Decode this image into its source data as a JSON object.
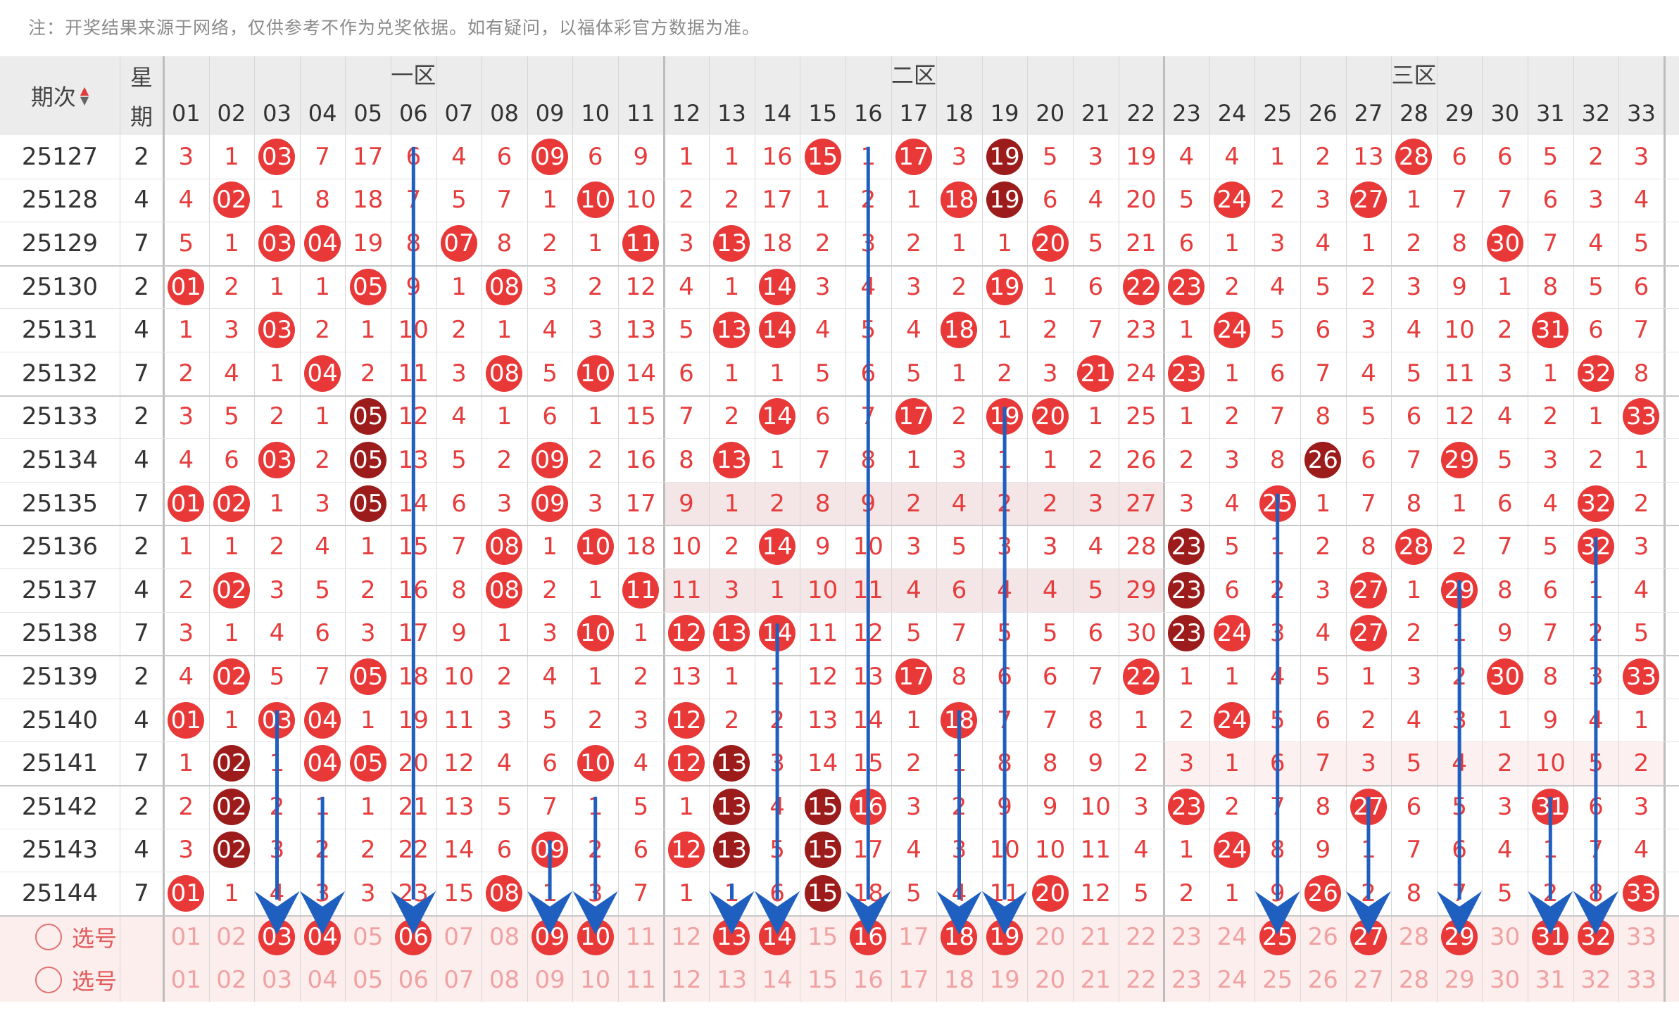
{
  "notice": "注：开奖结果来源于网络，仅供参考不作为兑奖依据。如有疑问，以福体彩官方数据为准。",
  "header": {
    "period_label": "期次",
    "sort_icon": "sort-up-down-icon",
    "weekday_label_top": "星",
    "weekday_label_bottom": "期",
    "zones": [
      "一区",
      "二区",
      "三区"
    ],
    "numbers": [
      "01",
      "02",
      "03",
      "04",
      "05",
      "06",
      "07",
      "08",
      "09",
      "10",
      "11",
      "12",
      "13",
      "14",
      "15",
      "16",
      "17",
      "18",
      "19",
      "20",
      "21",
      "22",
      "23",
      "24",
      "25",
      "26",
      "27",
      "28",
      "29",
      "30",
      "31",
      "32",
      "33"
    ]
  },
  "rows": [
    {
      "period": "25127",
      "weekday": "2",
      "cells": [
        "3",
        "1",
        "03",
        "7",
        "17",
        "6",
        "4",
        "6",
        "09",
        "6",
        "9",
        "1",
        "1",
        "16",
        "15",
        "1",
        "17",
        "3",
        "19",
        "5",
        "3",
        "19",
        "4",
        "4",
        "1",
        "2",
        "13",
        "28",
        "6",
        "6",
        "5",
        "2",
        "3"
      ],
      "dark": [
        19
      ]
    },
    {
      "period": "25128",
      "weekday": "4",
      "cells": [
        "4",
        "02",
        "1",
        "8",
        "18",
        "7",
        "5",
        "7",
        "1",
        "10",
        "10",
        "2",
        "2",
        "17",
        "1",
        "2",
        "1",
        "18",
        "19",
        "6",
        "4",
        "20",
        "5",
        "24",
        "2",
        "3",
        "27",
        "1",
        "7",
        "7",
        "6",
        "3",
        "4"
      ],
      "dark": [
        19
      ]
    },
    {
      "period": "25129",
      "weekday": "7",
      "cells": [
        "5",
        "1",
        "03",
        "04",
        "19",
        "8",
        "07",
        "8",
        "2",
        "1",
        "11",
        "3",
        "13",
        "18",
        "2",
        "3",
        "2",
        "1",
        "1",
        "20",
        "5",
        "21",
        "6",
        "1",
        "3",
        "4",
        "1",
        "2",
        "8",
        "30",
        "7",
        "4",
        "5"
      ],
      "dark": []
    },
    {
      "period": "25130",
      "weekday": "2",
      "cells": [
        "01",
        "2",
        "1",
        "1",
        "05",
        "9",
        "1",
        "08",
        "3",
        "2",
        "12",
        "4",
        "1",
        "14",
        "3",
        "4",
        "3",
        "2",
        "19",
        "1",
        "6",
        "22",
        "23",
        "2",
        "4",
        "5",
        "2",
        "3",
        "9",
        "1",
        "8",
        "5",
        "6"
      ],
      "dark": []
    },
    {
      "period": "25131",
      "weekday": "4",
      "cells": [
        "1",
        "3",
        "03",
        "2",
        "1",
        "10",
        "2",
        "1",
        "4",
        "3",
        "13",
        "5",
        "13",
        "14",
        "4",
        "5",
        "4",
        "18",
        "1",
        "2",
        "7",
        "23",
        "1",
        "24",
        "5",
        "6",
        "3",
        "4",
        "10",
        "2",
        "31",
        "6",
        "7"
      ],
      "dark": []
    },
    {
      "period": "25132",
      "weekday": "7",
      "cells": [
        "2",
        "4",
        "1",
        "04",
        "2",
        "11",
        "3",
        "08",
        "5",
        "10",
        "14",
        "6",
        "1",
        "1",
        "5",
        "6",
        "5",
        "1",
        "2",
        "3",
        "21",
        "24",
        "23",
        "1",
        "6",
        "7",
        "4",
        "5",
        "11",
        "3",
        "1",
        "32",
        "8"
      ],
      "dark": []
    },
    {
      "period": "25133",
      "weekday": "2",
      "cells": [
        "3",
        "5",
        "2",
        "1",
        "05",
        "12",
        "4",
        "1",
        "6",
        "1",
        "15",
        "7",
        "2",
        "14",
        "6",
        "7",
        "17",
        "2",
        "19",
        "20",
        "1",
        "25",
        "1",
        "2",
        "7",
        "8",
        "5",
        "6",
        "12",
        "4",
        "2",
        "1",
        "33"
      ],
      "dark": [
        5
      ]
    },
    {
      "period": "25134",
      "weekday": "4",
      "cells": [
        "4",
        "6",
        "03",
        "2",
        "05",
        "13",
        "5",
        "2",
        "09",
        "2",
        "16",
        "8",
        "13",
        "1",
        "7",
        "8",
        "1",
        "3",
        "1",
        "1",
        "2",
        "26",
        "2",
        "3",
        "8",
        "26",
        "6",
        "7",
        "29",
        "5",
        "3",
        "2",
        "1"
      ],
      "dark": [
        5,
        26
      ]
    },
    {
      "period": "25135",
      "weekday": "7",
      "cells": [
        "01",
        "02",
        "1",
        "3",
        "05",
        "14",
        "6",
        "3",
        "09",
        "3",
        "17",
        "9",
        "1",
        "2",
        "8",
        "9",
        "2",
        "4",
        "2",
        "2",
        "3",
        "27",
        "3",
        "4",
        "25",
        "1",
        "7",
        "8",
        "1",
        "6",
        "4",
        "32",
        "2"
      ],
      "dark": [
        5
      ]
    },
    {
      "period": "25136",
      "weekday": "2",
      "cells": [
        "1",
        "1",
        "2",
        "4",
        "1",
        "15",
        "7",
        "08",
        "1",
        "10",
        "18",
        "10",
        "2",
        "14",
        "9",
        "10",
        "3",
        "5",
        "3",
        "3",
        "4",
        "28",
        "23",
        "5",
        "1",
        "2",
        "8",
        "28",
        "2",
        "7",
        "5",
        "32",
        "3"
      ],
      "dark": [
        23
      ]
    },
    {
      "period": "25137",
      "weekday": "4",
      "cells": [
        "2",
        "02",
        "3",
        "5",
        "2",
        "16",
        "8",
        "08",
        "2",
        "1",
        "11",
        "11",
        "3",
        "1",
        "10",
        "11",
        "4",
        "6",
        "4",
        "4",
        "5",
        "29",
        "23",
        "6",
        "2",
        "3",
        "27",
        "1",
        "29",
        "8",
        "6",
        "1",
        "4"
      ],
      "dark": [
        23
      ]
    },
    {
      "period": "25138",
      "weekday": "7",
      "cells": [
        "3",
        "1",
        "4",
        "6",
        "3",
        "17",
        "9",
        "1",
        "3",
        "10",
        "1",
        "12",
        "13",
        "14",
        "11",
        "12",
        "5",
        "7",
        "5",
        "5",
        "6",
        "30",
        "23",
        "24",
        "3",
        "4",
        "27",
        "2",
        "1",
        "9",
        "7",
        "2",
        "5"
      ],
      "dark": [
        23
      ]
    },
    {
      "period": "25139",
      "weekday": "2",
      "cells": [
        "4",
        "02",
        "5",
        "7",
        "05",
        "18",
        "10",
        "2",
        "4",
        "1",
        "2",
        "13",
        "1",
        "1",
        "12",
        "13",
        "17",
        "8",
        "6",
        "6",
        "7",
        "22",
        "1",
        "1",
        "4",
        "5",
        "1",
        "3",
        "2",
        "30",
        "8",
        "3",
        "33"
      ],
      "dark": []
    },
    {
      "period": "25140",
      "weekday": "4",
      "cells": [
        "01",
        "1",
        "03",
        "04",
        "1",
        "19",
        "11",
        "3",
        "5",
        "2",
        "3",
        "12",
        "2",
        "2",
        "13",
        "14",
        "1",
        "18",
        "7",
        "7",
        "8",
        "1",
        "2",
        "24",
        "5",
        "6",
        "2",
        "4",
        "3",
        "1",
        "9",
        "4",
        "1"
      ],
      "dark": []
    },
    {
      "period": "25141",
      "weekday": "7",
      "cells": [
        "1",
        "02",
        "1",
        "04",
        "05",
        "20",
        "12",
        "4",
        "6",
        "10",
        "4",
        "12",
        "13",
        "3",
        "14",
        "15",
        "2",
        "1",
        "8",
        "8",
        "9",
        "2",
        "3",
        "1",
        "6",
        "7",
        "3",
        "5",
        "4",
        "2",
        "10",
        "5",
        "2"
      ],
      "dark": [
        2,
        13
      ]
    },
    {
      "period": "25142",
      "weekday": "2",
      "cells": [
        "2",
        "02",
        "2",
        "1",
        "1",
        "21",
        "13",
        "5",
        "7",
        "1",
        "5",
        "1",
        "13",
        "4",
        "15",
        "16",
        "3",
        "2",
        "9",
        "9",
        "10",
        "3",
        "23",
        "2",
        "7",
        "8",
        "27",
        "6",
        "5",
        "3",
        "31",
        "6",
        "3"
      ],
      "dark": [
        2,
        13,
        15
      ]
    },
    {
      "period": "25143",
      "weekday": "4",
      "cells": [
        "3",
        "02",
        "3",
        "2",
        "2",
        "22",
        "14",
        "6",
        "09",
        "2",
        "6",
        "12",
        "13",
        "5",
        "15",
        "17",
        "4",
        "3",
        "10",
        "10",
        "11",
        "4",
        "1",
        "24",
        "8",
        "9",
        "1",
        "7",
        "6",
        "4",
        "1",
        "7",
        "4"
      ],
      "dark": [
        2,
        13,
        15
      ]
    },
    {
      "period": "25144",
      "weekday": "7",
      "cells": [
        "01",
        "1",
        "4",
        "3",
        "3",
        "23",
        "15",
        "08",
        "1",
        "3",
        "7",
        "1",
        "1",
        "6",
        "15",
        "18",
        "5",
        "4",
        "11",
        "20",
        "12",
        "5",
        "2",
        "1",
        "9",
        "26",
        "2",
        "8",
        "7",
        "5",
        "2",
        "8",
        "33"
      ],
      "dark": [
        15
      ]
    }
  ],
  "select_rows": [
    {
      "label": "选号",
      "selected": [
        "03",
        "04",
        "06",
        "09",
        "10",
        "13",
        "14",
        "16",
        "18",
        "19",
        "25",
        "27",
        "29",
        "31",
        "32"
      ]
    },
    {
      "label": "选号",
      "selected": []
    }
  ],
  "colors": {
    "ball_red": "#e83838",
    "ball_dark": "#9c1c1c",
    "arrow": "#1f5fbf",
    "select_bg": "#fdeeee"
  }
}
